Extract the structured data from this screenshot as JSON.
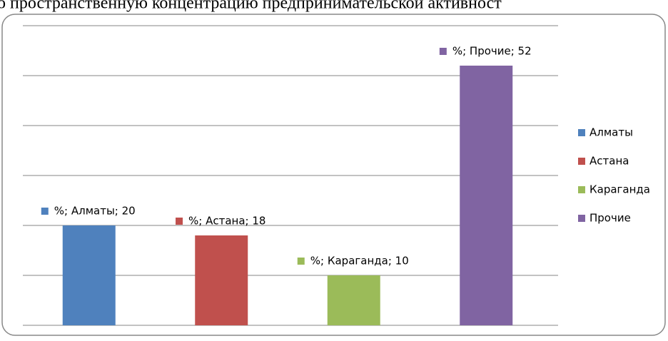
{
  "header": {
    "text": "о пространственную концентрацию предпринимательской активност"
  },
  "chart_data": {
    "type": "bar",
    "categories": [
      "Алматы",
      "Астана",
      "Караганда",
      "Прочие"
    ],
    "values": [
      20,
      18,
      10,
      52
    ],
    "value_labels": [
      "%; Алматы; 20",
      "%; Астана; 18",
      "%; Караганда; 10",
      "%; Прочие; 52"
    ],
    "colors": [
      "#4f81bd",
      "#c0504d",
      "#9bbb59",
      "#8064a2"
    ],
    "ylim": [
      0,
      60
    ],
    "yticks": [
      0,
      10,
      20,
      30,
      40,
      50,
      60
    ],
    "grid": true,
    "legend": "right"
  }
}
